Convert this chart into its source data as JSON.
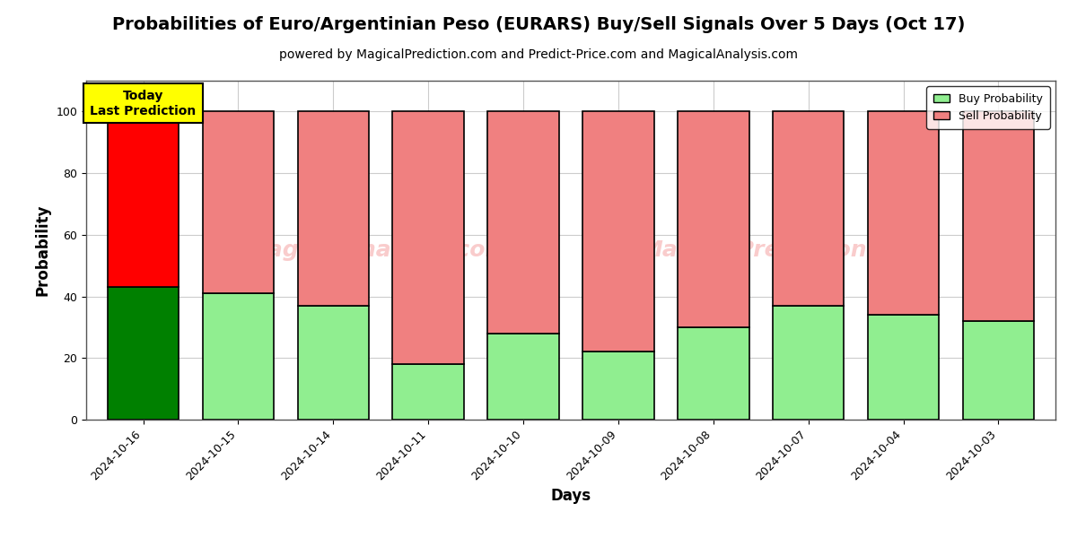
{
  "title": "Probabilities of Euro/Argentinian Peso (EURARS) Buy/Sell Signals Over 5 Days (Oct 17)",
  "subtitle": "powered by MagicalPrediction.com and Predict-Price.com and MagicalAnalysis.com",
  "xlabel": "Days",
  "ylabel": "Probability",
  "dates": [
    "2024-10-16",
    "2024-10-15",
    "2024-10-14",
    "2024-10-11",
    "2024-10-10",
    "2024-10-09",
    "2024-10-08",
    "2024-10-07",
    "2024-10-04",
    "2024-10-03"
  ],
  "buy_values": [
    43,
    41,
    37,
    18,
    28,
    22,
    30,
    37,
    34,
    32
  ],
  "sell_values": [
    57,
    59,
    63,
    82,
    72,
    78,
    70,
    63,
    66,
    68
  ],
  "today_buy_color": "#008000",
  "today_sell_color": "#ff0000",
  "buy_color": "#90EE90",
  "sell_color": "#F08080",
  "bar_edge_color": "#000000",
  "bar_edge_width": 1.2,
  "ylim": [
    0,
    110
  ],
  "yticks": [
    0,
    20,
    40,
    60,
    80,
    100
  ],
  "dashed_line_y": 110,
  "dashed_line_color": "#aaaaaa",
  "annotation_text": "Today\nLast Prediction",
  "annotation_bg": "#ffff00",
  "legend_buy_label": "Buy Probability",
  "legend_sell_label": "Sell Probability",
  "watermark_color": "#F08080",
  "watermark_alpha": 0.4,
  "grid_color": "#cccccc",
  "background_color": "#ffffff",
  "title_fontsize": 14,
  "subtitle_fontsize": 10,
  "axis_label_fontsize": 12,
  "tick_fontsize": 9,
  "bar_width": 0.75
}
